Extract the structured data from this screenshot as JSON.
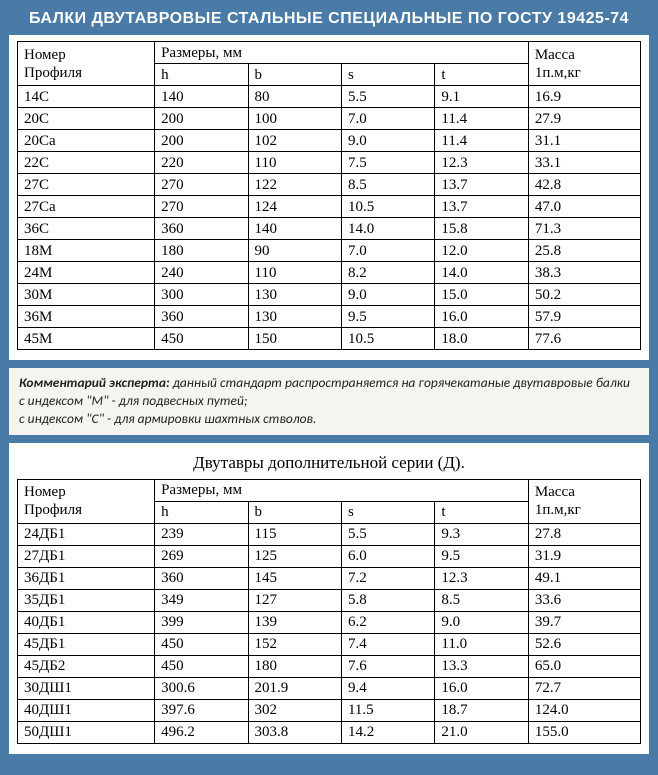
{
  "colors": {
    "page_bg": "#4a7ba6",
    "panel_bg": "#ffffff",
    "border": "#000000",
    "comment_bg": "#f5f5f0",
    "title_text": "#ffffff"
  },
  "title": "БАЛКИ ДВУТАВРОВЫЕ СТАЛЬНЫЕ СПЕЦИАЛЬНЫЕ ПО ГОСТУ 19425-74",
  "table1": {
    "type": "table",
    "header": {
      "profile_line1": "Номер",
      "profile_line2": "Профиля",
      "dims_label": "Размеры, мм",
      "h": "h",
      "b": "b",
      "s": "s",
      "t": "t",
      "mass_line1": "Масса",
      "mass_line2": "1п.м,кг"
    },
    "rows": [
      {
        "profile": "14С",
        "h": "140",
        "b": "80",
        "s": "5.5",
        "t": "9.1",
        "mass": "16.9"
      },
      {
        "profile": "20С",
        "h": "200",
        "b": "100",
        "s": "7.0",
        "t": "11.4",
        "mass": "27.9"
      },
      {
        "profile": "20Са",
        "h": "200",
        "b": "102",
        "s": "9.0",
        "t": "11.4",
        "mass": "31.1"
      },
      {
        "profile": "22С",
        "h": "220",
        "b": "110",
        "s": "7.5",
        "t": "12.3",
        "mass": "33.1"
      },
      {
        "profile": "27С",
        "h": "270",
        "b": "122",
        "s": "8.5",
        "t": "13.7",
        "mass": "42.8"
      },
      {
        "profile": "27Са",
        "h": "270",
        "b": "124",
        "s": "10.5",
        "t": "13.7",
        "mass": "47.0"
      },
      {
        "profile": "36С",
        "h": "360",
        "b": "140",
        "s": "14.0",
        "t": "15.8",
        "mass": "71.3"
      },
      {
        "profile": "18М",
        "h": "180",
        "b": "90",
        "s": "7.0",
        "t": "12.0",
        "mass": "25.8"
      },
      {
        "profile": "24М",
        "h": "240",
        "b": "110",
        "s": "8.2",
        "t": "14.0",
        "mass": "38.3"
      },
      {
        "profile": "30М",
        "h": "300",
        "b": "130",
        "s": "9.0",
        "t": "15.0",
        "mass": "50.2"
      },
      {
        "profile": "36М",
        "h": "360",
        "b": "130",
        "s": "9.5",
        "t": "16.0",
        "mass": "57.9"
      },
      {
        "profile": "45М",
        "h": "450",
        "b": "150",
        "s": "10.5",
        "t": "18.0",
        "mass": "77.6"
      }
    ]
  },
  "comment": {
    "lead": "Комментарий эксперта:",
    "line1": " данный стандарт распространяется на горячекатаные двутавровые балки",
    "line2": "с индексом \"М\" - для подвесных путей;",
    "line3": "с индексом \"С\" - для армировки шахтных стволов."
  },
  "table2": {
    "type": "table",
    "subtitle": "Двутавры дополнительной серии (Д).",
    "header": {
      "profile_line1": "Номер",
      "profile_line2": "Профиля",
      "dims_label": "Размеры, мм",
      "h": "h",
      "b": "b",
      "s": "s",
      "t": "t",
      "mass_line1": "Масса",
      "mass_line2": "1п.м,кг"
    },
    "rows": [
      {
        "profile": "24ДБ1",
        "h": "239",
        "b": "115",
        "s": "5.5",
        "t": "9.3",
        "mass": "27.8"
      },
      {
        "profile": "27ДБ1",
        "h": "269",
        "b": "125",
        "s": "6.0",
        "t": "9.5",
        "mass": "31.9"
      },
      {
        "profile": "36ДБ1",
        "h": "360",
        "b": "145",
        "s": "7.2",
        "t": "12.3",
        "mass": "49.1"
      },
      {
        "profile": "35ДБ1",
        "h": "349",
        "b": "127",
        "s": "5.8",
        "t": "8.5",
        "mass": "33.6"
      },
      {
        "profile": "40ДБ1",
        "h": "399",
        "b": "139",
        "s": "6.2",
        "t": "9.0",
        "mass": "39.7"
      },
      {
        "profile": "45ДБ1",
        "h": "450",
        "b": "152",
        "s": "7.4",
        "t": "11.0",
        "mass": "52.6"
      },
      {
        "profile": "45ДБ2",
        "h": "450",
        "b": "180",
        "s": "7.6",
        "t": "13.3",
        "mass": "65.0"
      },
      {
        "profile": "30ДШ1",
        "h": "300.6",
        "b": "201.9",
        "s": "9.4",
        "t": "16.0",
        "mass": "72.7"
      },
      {
        "profile": "40ДШ1",
        "h": "397.6",
        "b": "302",
        "s": "11.5",
        "t": "18.7",
        "mass": "124.0"
      },
      {
        "profile": "50ДШ1",
        "h": "496.2",
        "b": "303.8",
        "s": "14.2",
        "t": "21.0",
        "mass": "155.0"
      }
    ]
  }
}
